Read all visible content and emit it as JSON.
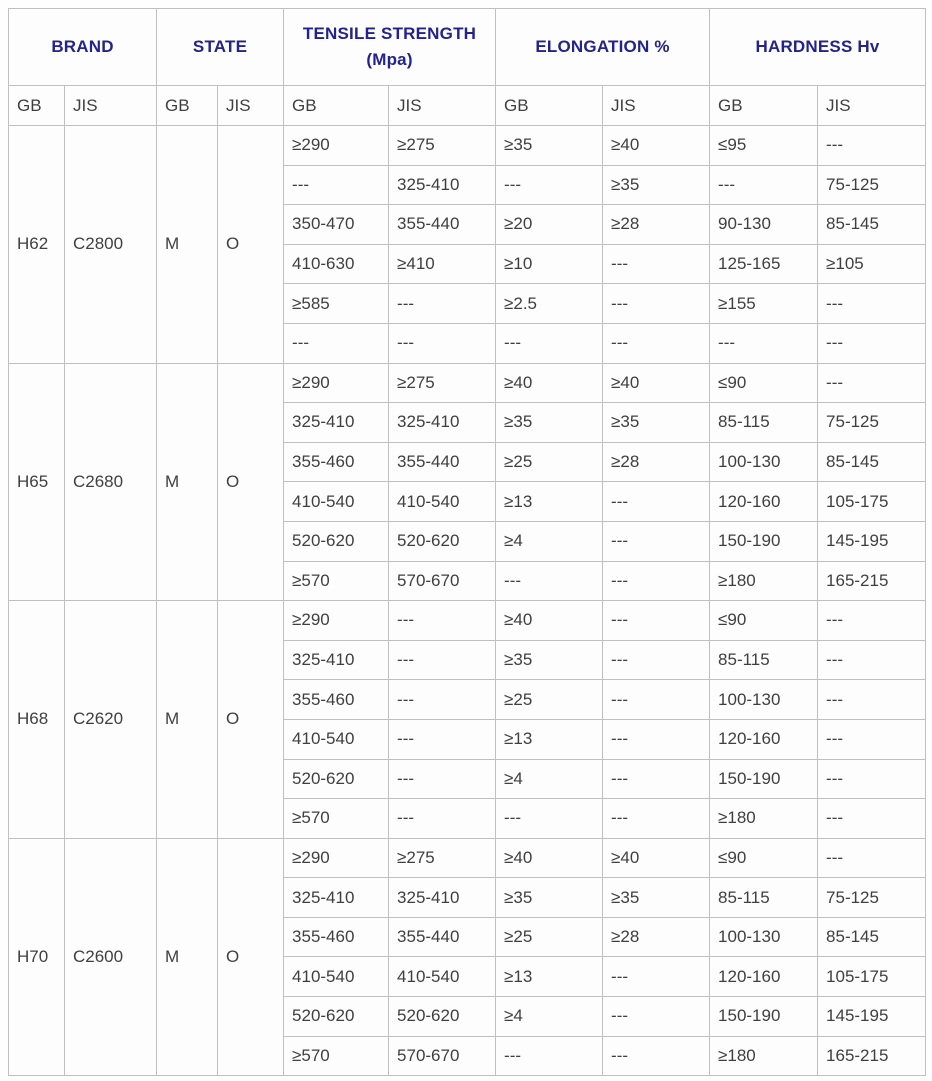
{
  "table": {
    "columns": [
      {
        "label": "BRAND",
        "sub": ""
      },
      {
        "label": "STATE",
        "sub": ""
      },
      {
        "label": "TENSILE STRENGTH",
        "sub": "(Mpa)"
      },
      {
        "label": "ELONGATION %",
        "sub": ""
      },
      {
        "label": "HARDNESS Hv",
        "sub": ""
      }
    ],
    "subheaders": [
      "GB",
      "JIS",
      "GB",
      "JIS",
      "GB",
      "JIS",
      "GB",
      "JIS",
      "GB",
      "JIS"
    ],
    "data_column_names": [
      "tensile-gb",
      "tensile-jis",
      "elongation-gb",
      "elongation-jis",
      "hardness-gb",
      "hardness-jis"
    ],
    "groups": [
      {
        "brand_gb": "H62",
        "brand_jis": "C2800",
        "state_gb": "M",
        "state_jis": "O",
        "rows": [
          [
            "≥290",
            "≥275",
            "≥35",
            "≥40",
            "≤95",
            "---"
          ],
          [
            "---",
            "325-410",
            "---",
            "≥35",
            "---",
            "75-125"
          ],
          [
            "350-470",
            "355-440",
            "≥20",
            "≥28",
            "90-130",
            "85-145"
          ],
          [
            "410-630",
            "≥410",
            "≥10",
            "---",
            "125-165",
            "≥105"
          ],
          [
            "≥585",
            "---",
            "≥2.5",
            "---",
            "≥155",
            "---"
          ],
          [
            "---",
            "---",
            "---",
            "---",
            "---",
            "---"
          ]
        ]
      },
      {
        "brand_gb": "H65",
        "brand_jis": "C2680",
        "state_gb": "M",
        "state_jis": "O",
        "rows": [
          [
            "≥290",
            "≥275",
            "≥40",
            "≥40",
            "≤90",
            "---"
          ],
          [
            "325-410",
            "325-410",
            "≥35",
            "≥35",
            "85-115",
            "75-125"
          ],
          [
            "355-460",
            "355-440",
            "≥25",
            "≥28",
            "100-130",
            "85-145"
          ],
          [
            "410-540",
            "410-540",
            "≥13",
            "---",
            "120-160",
            "105-175"
          ],
          [
            "520-620",
            "520-620",
            "≥4",
            "---",
            "150-190",
            "145-195"
          ],
          [
            "≥570",
            "570-670",
            "---",
            "---",
            "≥180",
            "165-215"
          ]
        ]
      },
      {
        "brand_gb": "H68",
        "brand_jis": "C2620",
        "state_gb": "M",
        "state_jis": "O",
        "rows": [
          [
            "≥290",
            "---",
            "≥40",
            "---",
            "≤90",
            "---"
          ],
          [
            "325-410",
            "---",
            "≥35",
            "---",
            "85-115",
            "---"
          ],
          [
            "355-460",
            "---",
            "≥25",
            "---",
            "100-130",
            "---"
          ],
          [
            "410-540",
            "---",
            "≥13",
            "---",
            "120-160",
            "---"
          ],
          [
            "520-620",
            "---",
            "≥4",
            "---",
            "150-190",
            "---"
          ],
          [
            "≥570",
            "---",
            "---",
            "---",
            "≥180",
            "---"
          ]
        ]
      },
      {
        "brand_gb": "H70",
        "brand_jis": "C2600",
        "state_gb": "M",
        "state_jis": "O",
        "rows": [
          [
            "≥290",
            "≥275",
            "≥40",
            "≥40",
            "≤90",
            "---"
          ],
          [
            "325-410",
            "325-410",
            "≥35",
            "≥35",
            "85-115",
            "75-125"
          ],
          [
            "355-460",
            "355-440",
            "≥25",
            "≥28",
            "100-130",
            "85-145"
          ],
          [
            "410-540",
            "410-540",
            "≥13",
            "---",
            "120-160",
            "105-175"
          ],
          [
            "520-620",
            "520-620",
            "≥4",
            "---",
            "150-190",
            "145-195"
          ],
          [
            "≥570",
            "570-670",
            "---",
            "---",
            "≥180",
            "165-215"
          ]
        ]
      }
    ],
    "colors": {
      "header_text": "#23238c",
      "body_text": "#3f3f3f",
      "border": "#c0c0c0",
      "cell_background": "#fdfdfd"
    }
  }
}
